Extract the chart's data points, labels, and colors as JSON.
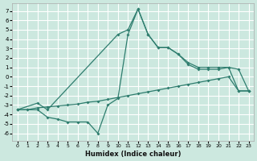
{
  "xlabel": "Humidex (Indice chaleur)",
  "background_color": "#cce8df",
  "grid_color": "#ffffff",
  "line_color": "#2e7d6e",
  "x_ticks": [
    0,
    1,
    2,
    3,
    4,
    5,
    6,
    7,
    8,
    9,
    10,
    11,
    12,
    13,
    14,
    15,
    16,
    17,
    18,
    19,
    20,
    21,
    22,
    23
  ],
  "y_ticks": [
    7,
    6,
    5,
    4,
    3,
    2,
    1,
    0,
    -1,
    -2,
    -3,
    -4,
    -5,
    -6
  ],
  "ylim": [
    -6.8,
    7.8
  ],
  "xlim": [
    -0.5,
    23.5
  ],
  "line1_x": [
    0,
    2,
    3,
    10,
    11,
    12,
    13,
    14,
    15,
    16,
    17,
    18,
    19,
    20,
    21,
    22,
    23
  ],
  "line1_y": [
    -3.5,
    -2.8,
    -3.5,
    4.5,
    5.0,
    7.2,
    4.5,
    3.1,
    3.1,
    2.4,
    1.5,
    1.0,
    1.0,
    1.0,
    1.0,
    0.8,
    -1.5
  ],
  "line2_x": [
    0,
    1,
    2,
    3,
    4,
    5,
    6,
    7,
    8,
    9,
    10,
    11,
    12,
    13,
    14,
    15,
    16,
    17,
    18,
    19,
    20,
    21,
    22,
    23
  ],
  "line2_y": [
    -3.5,
    -3.5,
    -3.5,
    -4.3,
    -4.5,
    -4.8,
    -4.8,
    -4.8,
    -6.0,
    -3.0,
    -2.3,
    4.5,
    7.2,
    4.5,
    3.1,
    3.1,
    2.4,
    1.3,
    0.8,
    0.8,
    0.8,
    1.0,
    -1.5,
    -1.5
  ],
  "line3_x": [
    0,
    1,
    2,
    3,
    4,
    5,
    6,
    7,
    8,
    9,
    10,
    11,
    12,
    13,
    14,
    15,
    16,
    17,
    18,
    19,
    20,
    21,
    22,
    23
  ],
  "line3_y": [
    -3.5,
    -3.5,
    -3.3,
    -3.2,
    -3.1,
    -3.0,
    -2.9,
    -2.7,
    -2.6,
    -2.4,
    -2.2,
    -2.0,
    -1.8,
    -1.6,
    -1.4,
    -1.2,
    -1.0,
    -0.8,
    -0.6,
    -0.4,
    -0.2,
    0.0,
    -1.5,
    -1.5
  ]
}
